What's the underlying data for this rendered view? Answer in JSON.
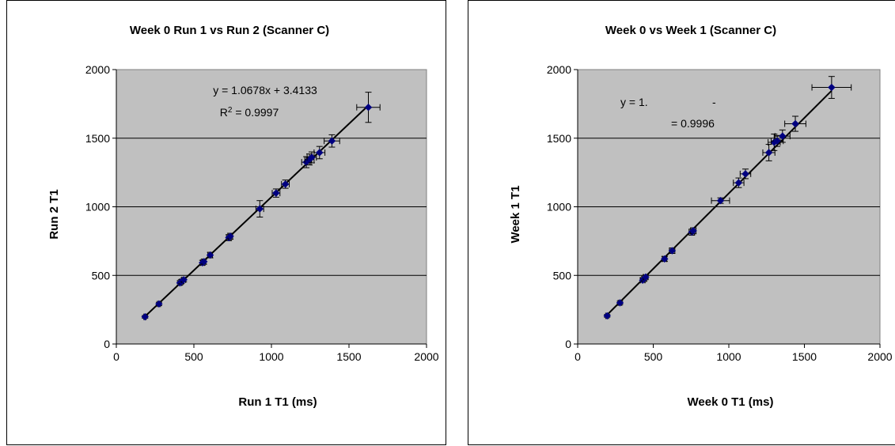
{
  "chart_data": [
    {
      "type": "scatter",
      "title": "Week 0 Run 1 vs Run 2 (Scanner C)",
      "xlabel": "Run 1 T1 (ms)",
      "ylabel": "Run 2 T1",
      "xlim": [
        0,
        2000
      ],
      "ylim": [
        0,
        2000
      ],
      "xticks": [
        "0",
        "500",
        "1000",
        "1500",
        "2000"
      ],
      "yticks": [
        "0",
        "500",
        "1000",
        "1500",
        "2000"
      ],
      "grid": "horizontal",
      "plot_background": "#c0c0c0",
      "marker_color": "#000080",
      "trendline": {
        "slope": 1.0678,
        "intercept": 3.4133
      },
      "trendline_equation": "y = 1.0678x + 3.4133",
      "r2_prefix": "R",
      "r2_exponent": "2",
      "r2_value": " = 0.9997",
      "points": [
        {
          "x": 185,
          "y": 198,
          "xerr": 8,
          "yerr": 10
        },
        {
          "x": 275,
          "y": 292,
          "xerr": 10,
          "yerr": 12
        },
        {
          "x": 410,
          "y": 445,
          "xerr": 12,
          "yerr": 15
        },
        {
          "x": 420,
          "y": 455,
          "xerr": 12,
          "yerr": 15
        },
        {
          "x": 435,
          "y": 468,
          "xerr": 12,
          "yerr": 15
        },
        {
          "x": 555,
          "y": 592,
          "xerr": 12,
          "yerr": 18
        },
        {
          "x": 565,
          "y": 600,
          "xerr": 12,
          "yerr": 18
        },
        {
          "x": 605,
          "y": 648,
          "xerr": 15,
          "yerr": 20
        },
        {
          "x": 725,
          "y": 775,
          "xerr": 15,
          "yerr": 22
        },
        {
          "x": 735,
          "y": 785,
          "xerr": 15,
          "yerr": 22
        },
        {
          "x": 925,
          "y": 985,
          "xerr": 25,
          "yerr": 60
        },
        {
          "x": 1030,
          "y": 1100,
          "xerr": 25,
          "yerr": 30
        },
        {
          "x": 1090,
          "y": 1165,
          "xerr": 25,
          "yerr": 30
        },
        {
          "x": 1225,
          "y": 1325,
          "xerr": 30,
          "yerr": 40
        },
        {
          "x": 1245,
          "y": 1345,
          "xerr": 30,
          "yerr": 40
        },
        {
          "x": 1260,
          "y": 1360,
          "xerr": 30,
          "yerr": 40
        },
        {
          "x": 1310,
          "y": 1395,
          "xerr": 35,
          "yerr": 45
        },
        {
          "x": 1390,
          "y": 1480,
          "xerr": 50,
          "yerr": 45
        },
        {
          "x": 1625,
          "y": 1725,
          "xerr": 75,
          "yerr": 110
        }
      ]
    },
    {
      "type": "scatter",
      "title": "Week 0 vs Week 1 (Scanner C)",
      "xlabel": "Week 0 T1 (ms)",
      "ylabel": "Week 1 T1",
      "xlim": [
        0,
        2000
      ],
      "ylim": [
        0,
        2000
      ],
      "xticks": [
        "0",
        "500",
        "1000",
        "1500",
        "2000"
      ],
      "yticks": [
        "0",
        "500",
        "1000",
        "1500",
        "2000"
      ],
      "grid": "horizontal",
      "plot_background": "#c0c0c0",
      "marker_color": "#000080",
      "trendline": {
        "slope": 1.1,
        "intercept": -2
      },
      "trendline_eq_prefix": "y = 1.",
      "trendline_eq_dash": "-",
      "r2_value": "= 0.9996",
      "points": [
        {
          "x": 195,
          "y": 205,
          "xerr": 10,
          "yerr": 10
        },
        {
          "x": 280,
          "y": 300,
          "xerr": 12,
          "yerr": 12
        },
        {
          "x": 430,
          "y": 465,
          "xerr": 15,
          "yerr": 15
        },
        {
          "x": 440,
          "y": 475,
          "xerr": 15,
          "yerr": 15
        },
        {
          "x": 450,
          "y": 488,
          "xerr": 15,
          "yerr": 15
        },
        {
          "x": 575,
          "y": 620,
          "xerr": 15,
          "yerr": 18
        },
        {
          "x": 625,
          "y": 680,
          "xerr": 18,
          "yerr": 20
        },
        {
          "x": 755,
          "y": 815,
          "xerr": 18,
          "yerr": 22
        },
        {
          "x": 765,
          "y": 825,
          "xerr": 18,
          "yerr": 22
        },
        {
          "x": 945,
          "y": 1045,
          "xerr": 60,
          "yerr": 20
        },
        {
          "x": 1065,
          "y": 1175,
          "xerr": 35,
          "yerr": 35
        },
        {
          "x": 1110,
          "y": 1240,
          "xerr": 35,
          "yerr": 35
        },
        {
          "x": 1265,
          "y": 1395,
          "xerr": 40,
          "yerr": 60
        },
        {
          "x": 1300,
          "y": 1470,
          "xerr": 40,
          "yerr": 60
        },
        {
          "x": 1320,
          "y": 1480,
          "xerr": 40,
          "yerr": 40
        },
        {
          "x": 1355,
          "y": 1515,
          "xerr": 50,
          "yerr": 45
        },
        {
          "x": 1440,
          "y": 1605,
          "xerr": 70,
          "yerr": 55
        },
        {
          "x": 1680,
          "y": 1870,
          "xerr": 130,
          "yerr": 80
        }
      ]
    }
  ]
}
